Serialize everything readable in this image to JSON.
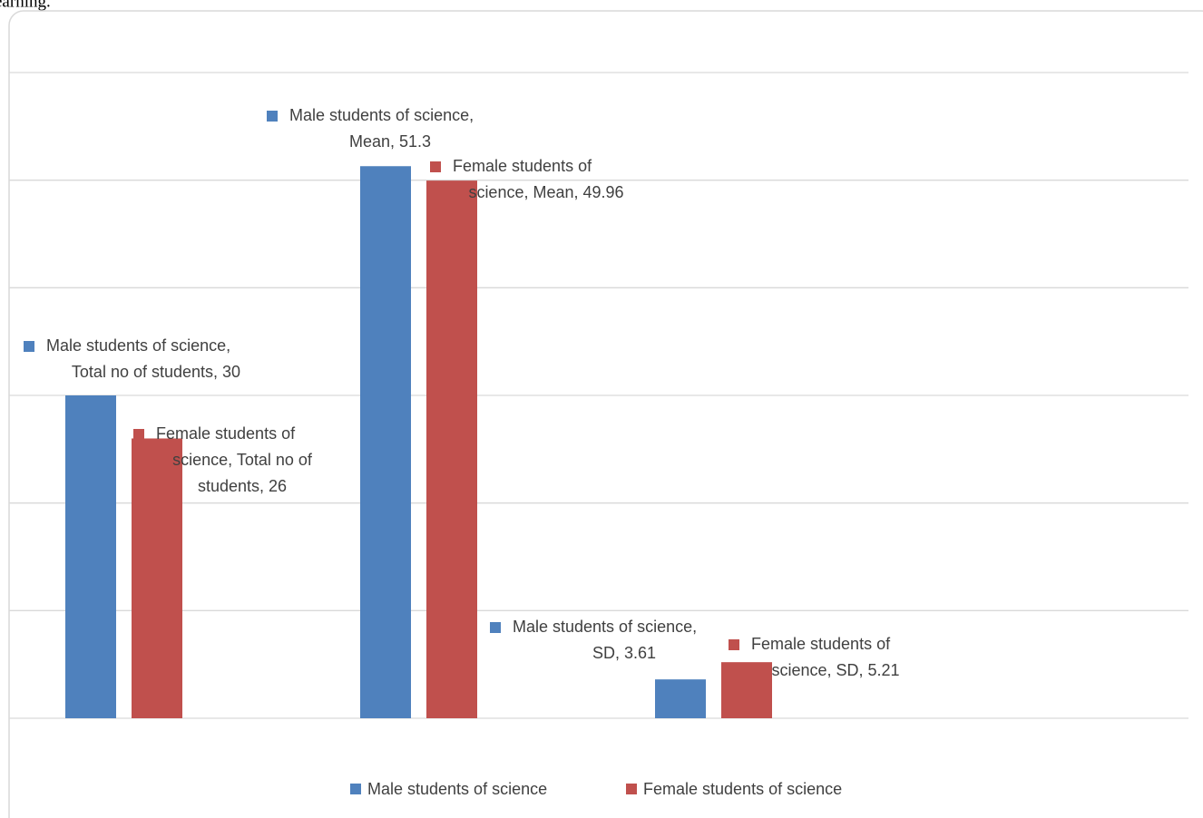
{
  "caption_fragment": "earning.",
  "chart_data": {
    "type": "bar",
    "categories": [
      null,
      null,
      null
    ],
    "series": [
      {
        "name": "Male students of science",
        "color": "#4f81bd",
        "values": [
          30,
          51.3,
          3.61
        ],
        "value_labels": [
          "Male students of science,\nTotal no of students, 30",
          "Male students of science,\nMean, 51.3",
          "Male students of science,\nSD, 3.61"
        ]
      },
      {
        "name": "Female students of science",
        "color": "#c0504d",
        "values": [
          26,
          49.96,
          5.21
        ],
        "value_labels": [
          "Female students of\nscience, Total no of\nstudents, 26",
          "Female students of\nscience, Mean, 49.96",
          "Female students of\nscience, SD, 5.21"
        ]
      }
    ],
    "ylim": [
      0,
      60
    ],
    "yticks": [
      0,
      10,
      20,
      30,
      40,
      50,
      60
    ],
    "grid": true,
    "legend": "bottom"
  }
}
